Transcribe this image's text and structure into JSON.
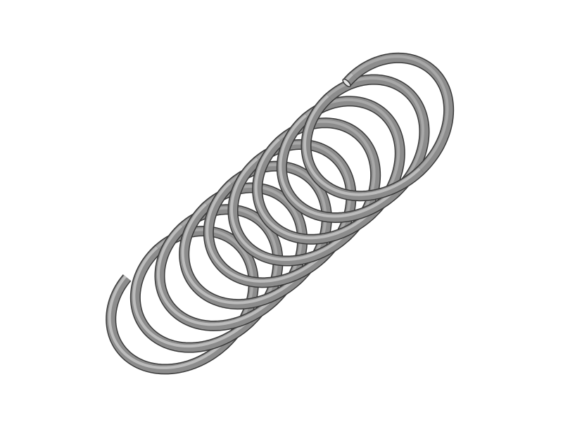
{
  "scene": {
    "subject": "compression-spring",
    "turns": 9,
    "colors": {
      "background": "#ffffff",
      "wire_outline": "#3a3a3a",
      "wire_body": "#8c8c8c",
      "wire_highlight": "#c4c4c4",
      "wire_end_face": "#e6e6e6"
    }
  }
}
